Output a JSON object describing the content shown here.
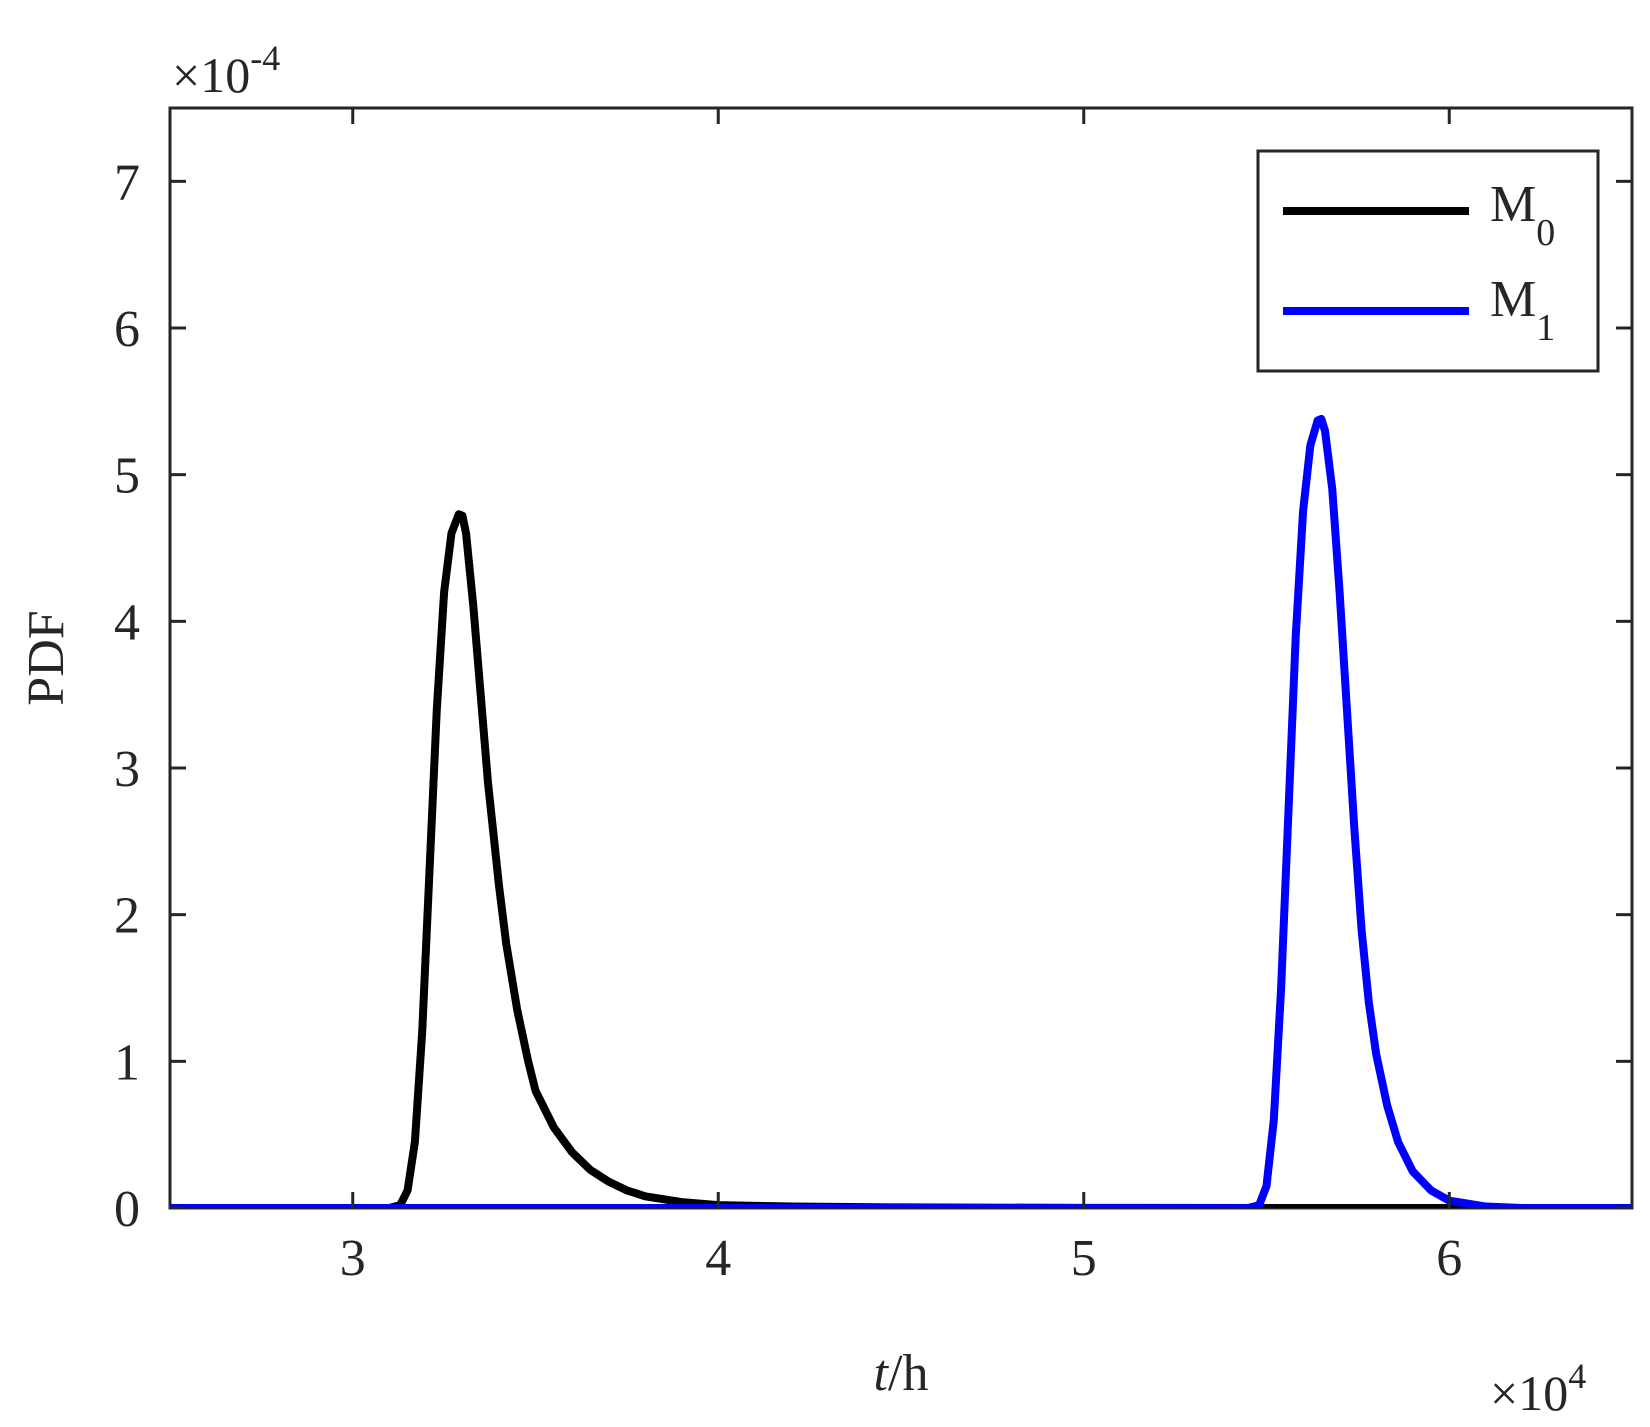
{
  "chart_data": {
    "type": "line",
    "title": "",
    "xlabel": {
      "italic": "t",
      "rest": "/h"
    },
    "ylabel": "PDF",
    "xlim": [
      2.5,
      6.5
    ],
    "ylim": [
      0,
      7.5
    ],
    "x_ticks": [
      3,
      4,
      5,
      6
    ],
    "y_ticks": [
      0,
      1,
      2,
      3,
      4,
      5,
      6,
      7
    ],
    "x_multiplier": {
      "base": "×10",
      "exponent": "4"
    },
    "y_multiplier": {
      "base": "×10",
      "exponent": "-4"
    },
    "grid": false,
    "box": true,
    "legend": {
      "placement": "top-right",
      "entries": [
        {
          "base": "M",
          "sub": "0",
          "color": "#000000"
        },
        {
          "base": "M",
          "sub": "1",
          "color": "#0000ff"
        }
      ]
    },
    "series": [
      {
        "name": "M0",
        "color": "#000000",
        "x": [
          2.5,
          3.0,
          3.1,
          3.13,
          3.15,
          3.17,
          3.19,
          3.21,
          3.23,
          3.25,
          3.27,
          3.29,
          3.3,
          3.31,
          3.33,
          3.35,
          3.37,
          3.4,
          3.42,
          3.45,
          3.48,
          3.5,
          3.55,
          3.6,
          3.65,
          3.7,
          3.75,
          3.8,
          3.9,
          4.0,
          4.2,
          4.5,
          5.0,
          5.5,
          6.0,
          6.5
        ],
        "y": [
          0,
          0,
          0,
          0.02,
          0.12,
          0.45,
          1.2,
          2.3,
          3.4,
          4.2,
          4.6,
          4.73,
          4.72,
          4.6,
          4.1,
          3.5,
          2.9,
          2.2,
          1.8,
          1.35,
          1.0,
          0.8,
          0.55,
          0.38,
          0.26,
          0.18,
          0.12,
          0.08,
          0.04,
          0.02,
          0.01,
          0.004,
          0.001,
          0,
          0,
          0
        ]
      },
      {
        "name": "M1",
        "color": "#0000ff",
        "x": [
          2.5,
          5.0,
          5.45,
          5.48,
          5.5,
          5.52,
          5.54,
          5.56,
          5.58,
          5.6,
          5.62,
          5.64,
          5.65,
          5.66,
          5.68,
          5.7,
          5.72,
          5.74,
          5.76,
          5.78,
          5.8,
          5.83,
          5.86,
          5.9,
          5.95,
          6.0,
          6.05,
          6.1,
          6.2,
          6.5
        ],
        "y": [
          0,
          0,
          0,
          0.02,
          0.15,
          0.6,
          1.5,
          2.7,
          3.9,
          4.75,
          5.2,
          5.37,
          5.38,
          5.3,
          4.9,
          4.2,
          3.4,
          2.6,
          1.9,
          1.4,
          1.05,
          0.7,
          0.45,
          0.25,
          0.12,
          0.05,
          0.03,
          0.01,
          0,
          0
        ]
      }
    ]
  }
}
